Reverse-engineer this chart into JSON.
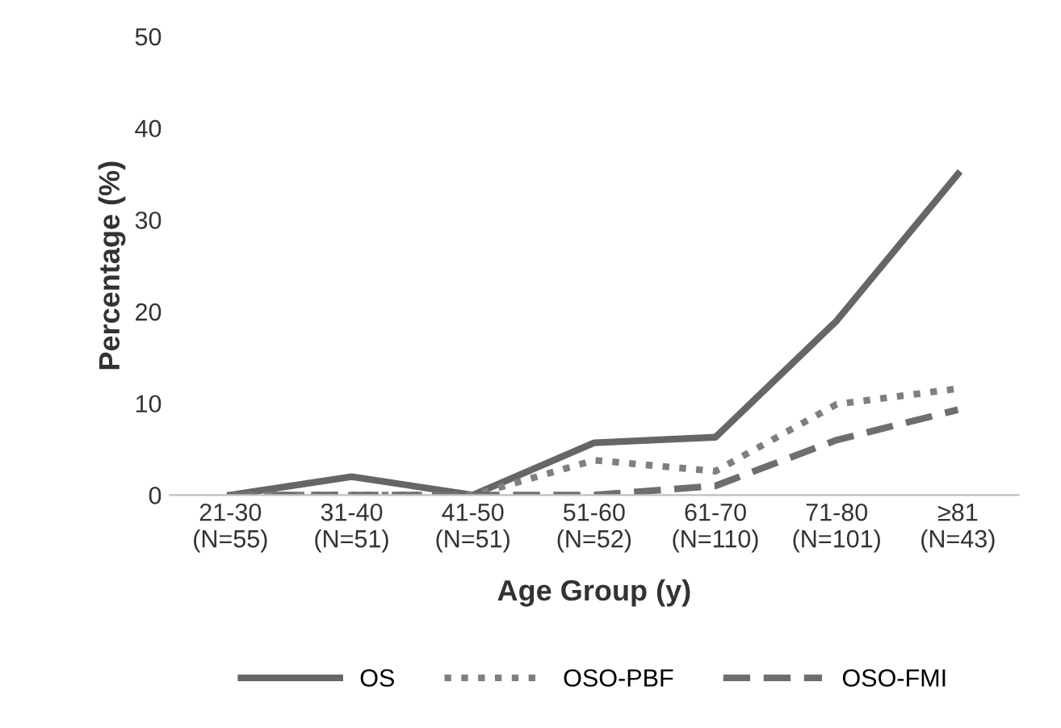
{
  "chart_data": {
    "type": "line",
    "xlabel": "Age Group (y)",
    "ylabel": "Percentage (%)",
    "categories": [
      "21-30\n(N=55)",
      "31-40\n(N=51)",
      "41-50\n(N=51)",
      "51-60\n(N=52)",
      "61-70\n(N=110)",
      "71-80\n(N=101)",
      "≥81\n(N=43)"
    ],
    "series": [
      {
        "name": "OS",
        "color": "#666666",
        "line_style": "solid",
        "values": [
          0,
          2,
          0,
          5.7,
          6.3,
          19,
          35
        ]
      },
      {
        "name": "OSO-PBF",
        "color": "#7f7f7f",
        "line_style": "dotted",
        "values": [
          0,
          0,
          0,
          3.8,
          2.6,
          9.9,
          11.6
        ]
      },
      {
        "name": "OSO-FMI",
        "color": "#6e6e6e",
        "line_style": "dashed",
        "values": [
          0,
          0,
          0,
          0,
          1,
          6,
          9.3
        ]
      }
    ],
    "ylim": [
      0,
      50
    ],
    "yticks": [
      0,
      10,
      20,
      30,
      40,
      50
    ],
    "grid": false,
    "legend": "bottom",
    "marker": "none"
  }
}
